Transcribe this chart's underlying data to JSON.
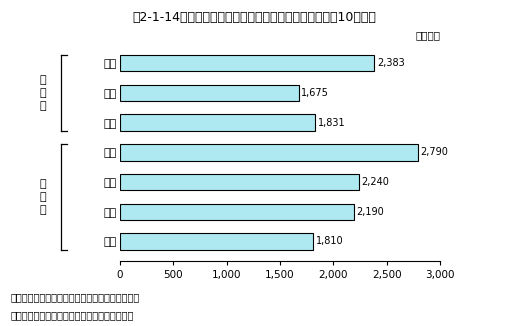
{
  "title": "第2-1-14図　大学等の研究者１人当たりの研究費（平成10年度）",
  "categories": [
    "国立",
    "公立",
    "私立",
    "理学",
    "工学",
    "農学",
    "保健"
  ],
  "values": [
    2383,
    1675,
    1831,
    2790,
    2240,
    2190,
    1810
  ],
  "bar_color": "#aee8f0",
  "bar_edge_color": "#000000",
  "xlim": [
    0,
    3000
  ],
  "xticks": [
    0,
    500,
    1000,
    1500,
    2000,
    2500,
    3000
  ],
  "xtick_labels": [
    "0",
    "500",
    "1,000",
    "1,500",
    "2,000",
    "2,500",
    "3,000"
  ],
  "xlabel_unit": "（万円）",
  "group1_label": "組\n織\n別",
  "group2_label": "専\n門\n別",
  "group1_indices": [
    0,
    1,
    2
  ],
  "group2_indices": [
    3,
    4,
    5,
    6
  ],
  "note1": "注）研究本務者のうち、教員のみの数値である。",
  "note2": "資料：総務庁統計局「科学技術研究調査報告」",
  "bg_color": "#ffffff",
  "bar_height": 0.55
}
